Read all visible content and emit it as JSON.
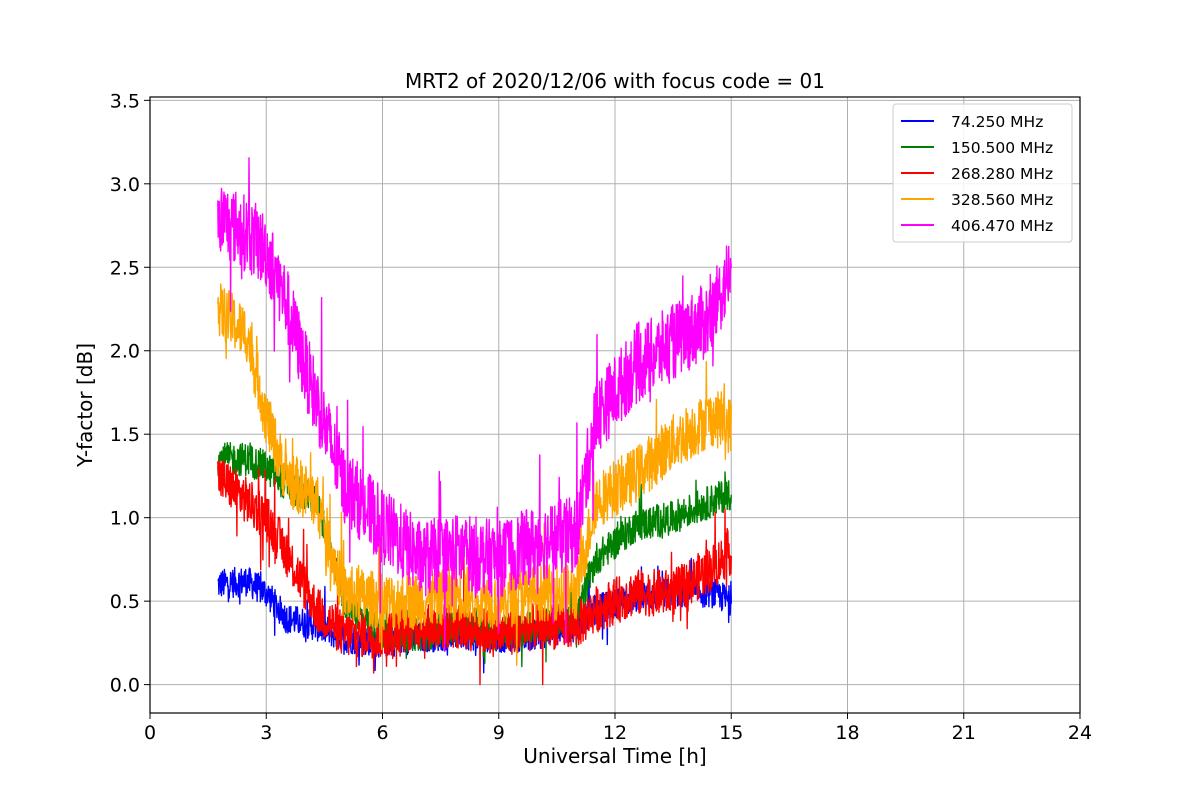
{
  "chart_data": {
    "type": "line",
    "title": "MRT2 of 2020/12/06 with focus code = 01",
    "xlabel": "Universal Time [h]",
    "ylabel": "Y-factor [dB]",
    "xlim": [
      0,
      24
    ],
    "ylim": [
      -0.17,
      3.52
    ],
    "xticks": [
      0,
      3,
      6,
      9,
      12,
      15,
      18,
      21,
      24
    ],
    "xtick_labels": [
      "0",
      "3",
      "6",
      "9",
      "12",
      "15",
      "18",
      "21",
      "24"
    ],
    "yticks": [
      0.0,
      0.5,
      1.0,
      1.5,
      2.0,
      2.5,
      3.0,
      3.5
    ],
    "ytick_labels": [
      "0.0",
      "0.5",
      "1.0",
      "1.5",
      "2.0",
      "2.5",
      "3.0",
      "3.5"
    ],
    "grid": true,
    "legend_position": "top-right",
    "series": [
      {
        "name": " 74.250 MHz",
        "color": "#0000ff",
        "noise": 0.09,
        "points": [
          [
            1.75,
            0.6
          ],
          [
            2.5,
            0.62
          ],
          [
            3.0,
            0.55
          ],
          [
            3.5,
            0.4
          ],
          [
            4.3,
            0.35
          ],
          [
            5.0,
            0.28
          ],
          [
            6.0,
            0.25
          ],
          [
            7.0,
            0.28
          ],
          [
            8.0,
            0.3
          ],
          [
            9.0,
            0.28
          ],
          [
            10.0,
            0.3
          ],
          [
            11.0,
            0.35
          ],
          [
            11.5,
            0.45
          ],
          [
            12.5,
            0.52
          ],
          [
            13.5,
            0.55
          ],
          [
            14.5,
            0.55
          ],
          [
            15.0,
            0.5
          ]
        ]
      },
      {
        "name": "150.500 MHz",
        "color": "#008000",
        "noise": 0.1,
        "points": [
          [
            1.75,
            1.35
          ],
          [
            2.5,
            1.35
          ],
          [
            3.0,
            1.3
          ],
          [
            3.5,
            1.2
          ],
          [
            4.3,
            1.1
          ],
          [
            5.0,
            0.5
          ],
          [
            6.0,
            0.3
          ],
          [
            7.0,
            0.3
          ],
          [
            8.0,
            0.35
          ],
          [
            9.0,
            0.3
          ],
          [
            10.0,
            0.35
          ],
          [
            11.0,
            0.4
          ],
          [
            11.5,
            0.75
          ],
          [
            12.0,
            0.85
          ],
          [
            12.5,
            0.95
          ],
          [
            13.5,
            1.0
          ],
          [
            14.5,
            1.1
          ],
          [
            15.0,
            1.15
          ]
        ]
      },
      {
        "name": "268.280 MHz",
        "color": "#ff0000",
        "noise": 0.14,
        "points": [
          [
            1.75,
            1.25
          ],
          [
            2.5,
            1.1
          ],
          [
            3.0,
            1.0
          ],
          [
            3.5,
            0.8
          ],
          [
            4.3,
            0.45
          ],
          [
            5.0,
            0.3
          ],
          [
            6.0,
            0.3
          ],
          [
            7.0,
            0.35
          ],
          [
            8.0,
            0.35
          ],
          [
            9.0,
            0.3
          ],
          [
            10.0,
            0.35
          ],
          [
            11.0,
            0.35
          ],
          [
            11.5,
            0.45
          ],
          [
            12.5,
            0.55
          ],
          [
            13.5,
            0.55
          ],
          [
            14.5,
            0.7
          ],
          [
            15.0,
            0.8
          ]
        ]
      },
      {
        "name": "328.560 MHz",
        "color": "#ffa500",
        "noise": 0.17,
        "points": [
          [
            1.75,
            2.25
          ],
          [
            2.5,
            2.1
          ],
          [
            3.0,
            1.6
          ],
          [
            3.5,
            1.25
          ],
          [
            4.3,
            1.1
          ],
          [
            5.0,
            0.55
          ],
          [
            6.0,
            0.5
          ],
          [
            7.0,
            0.5
          ],
          [
            8.0,
            0.55
          ],
          [
            9.0,
            0.5
          ],
          [
            10.0,
            0.55
          ],
          [
            11.0,
            0.55
          ],
          [
            11.5,
            1.1
          ],
          [
            12.5,
            1.25
          ],
          [
            13.5,
            1.45
          ],
          [
            14.5,
            1.6
          ],
          [
            15.0,
            1.55
          ]
        ]
      },
      {
        "name": "406.470 MHz",
        "color": "#ff00ff",
        "noise": 0.23,
        "points": [
          [
            1.75,
            2.8
          ],
          [
            2.5,
            2.7
          ],
          [
            3.0,
            2.6
          ],
          [
            3.5,
            2.3
          ],
          [
            4.0,
            1.9
          ],
          [
            4.3,
            1.7
          ],
          [
            5.0,
            1.2
          ],
          [
            6.0,
            0.95
          ],
          [
            7.0,
            0.75
          ],
          [
            8.0,
            0.8
          ],
          [
            9.0,
            0.75
          ],
          [
            10.0,
            0.85
          ],
          [
            11.0,
            0.9
          ],
          [
            11.5,
            1.6
          ],
          [
            12.5,
            1.9
          ],
          [
            13.5,
            2.05
          ],
          [
            14.5,
            2.2
          ],
          [
            15.0,
            2.5
          ]
        ]
      }
    ]
  }
}
